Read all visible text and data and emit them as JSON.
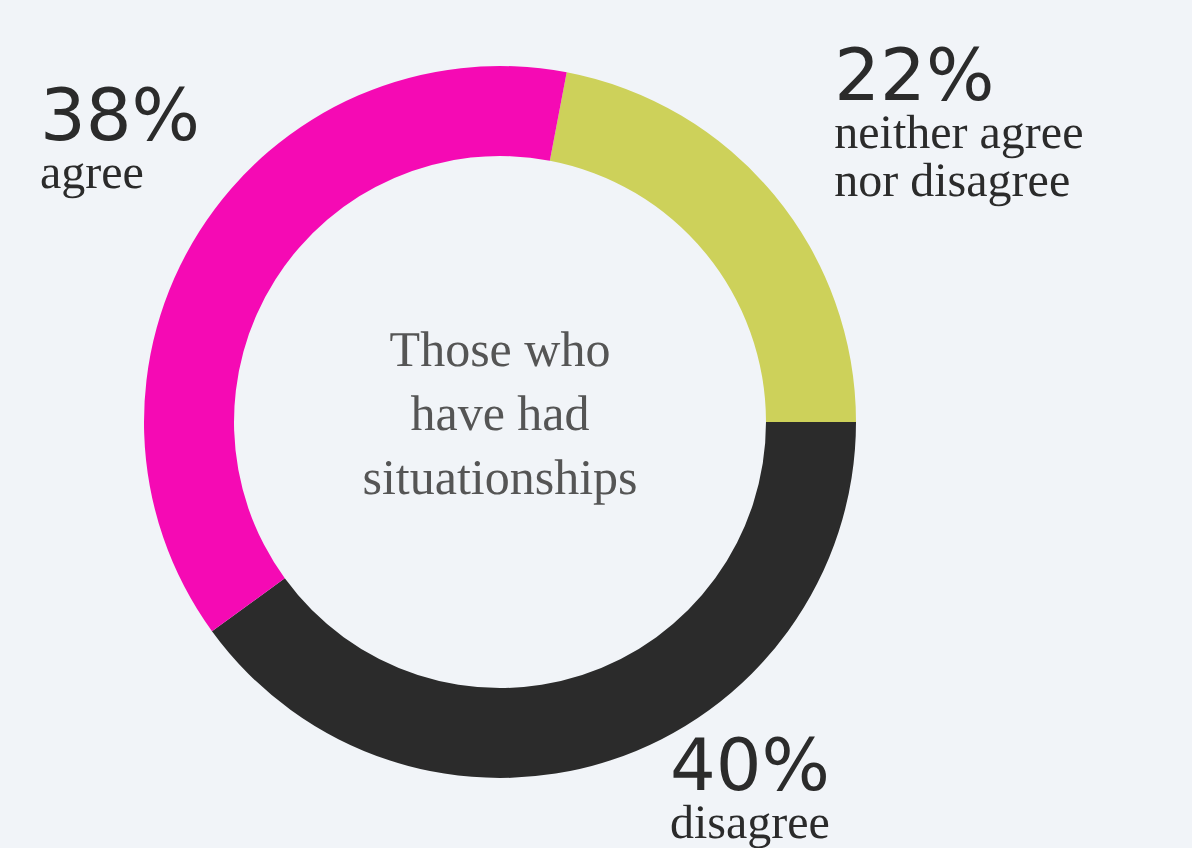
{
  "chart_data": {
    "type": "donut",
    "title": "Those who have had situationships",
    "categories": [
      "neither agree nor disagree",
      "disagree",
      "agree"
    ],
    "values": [
      22,
      40,
      38
    ],
    "colors": [
      "#cdd15a",
      "#2b2b2b",
      "#f50ab4"
    ],
    "value_labels": [
      "22%",
      "40%",
      "38%"
    ]
  }
}
